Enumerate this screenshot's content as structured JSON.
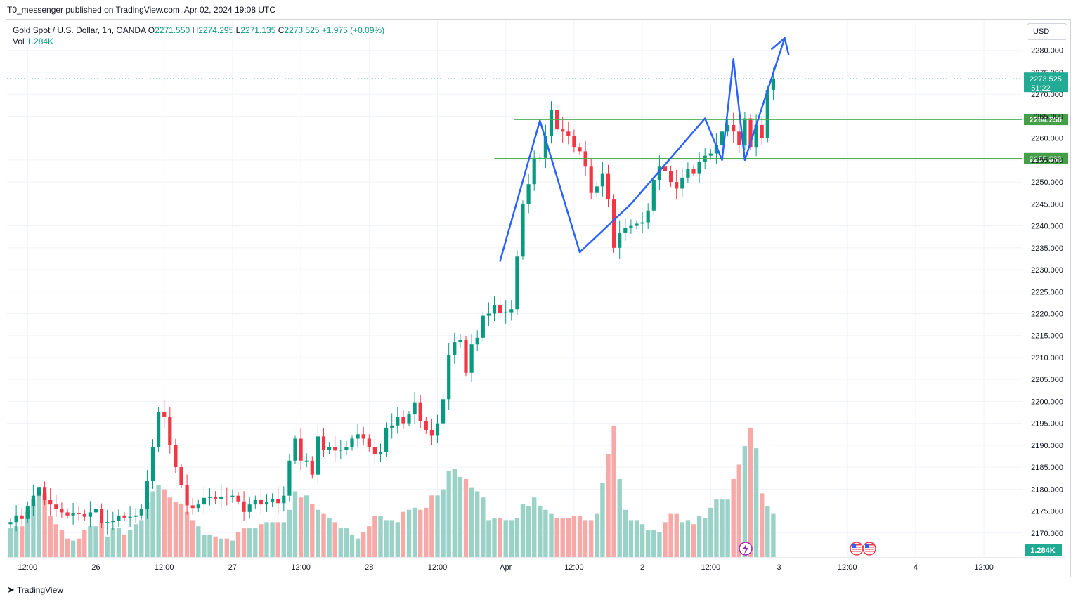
{
  "header": {
    "publisher": "T0_messenger published on TradingView.com, Apr 02, 2024 19:08 UTC"
  },
  "legend": {
    "symbol": "Gold Spot / U.S. Dollar, 1h, OANDA",
    "o_label": "O",
    "o_value": "2271.550",
    "h_label": "H",
    "h_value": "2274.295",
    "l_label": "L",
    "l_value": "2271.135",
    "c_label": "C",
    "c_value": "2273.525",
    "change": "+1.975 (+0.09%)",
    "vol_label": "Vol",
    "vol_value": "1.284K"
  },
  "currency_button": "USD",
  "footer": {
    "brand": "TradingView"
  },
  "chart_data": {
    "type": "candlestick",
    "title": "Gold Spot / U.S. Dollar, 1h, OANDA",
    "y_axis": {
      "range": [
        2165,
        2283
      ],
      "ticks": [
        "2280.000",
        "2275.000",
        "2270.000",
        "2265.000",
        "2260.000",
        "2255.000",
        "2250.000",
        "2245.000",
        "2240.000",
        "2235.000",
        "2230.000",
        "2225.000",
        "2220.000",
        "2215.000",
        "2210.000",
        "2205.000",
        "2200.000",
        "2195.000",
        "2190.000",
        "2185.000",
        "2180.000",
        "2175.000",
        "2170.000"
      ]
    },
    "x_axis": {
      "labels": [
        {
          "bar": 3,
          "text": "12:00"
        },
        {
          "bar": 15,
          "text": "26"
        },
        {
          "bar": 27,
          "text": "12:00"
        },
        {
          "bar": 39,
          "text": "27"
        },
        {
          "bar": 51,
          "text": "12:00"
        },
        {
          "bar": 63,
          "text": "28"
        },
        {
          "bar": 75,
          "text": "12:00"
        },
        {
          "bar": 87,
          "text": "Apr"
        },
        {
          "bar": 99,
          "text": "12:00"
        },
        {
          "bar": 111,
          "text": "2"
        },
        {
          "bar": 123,
          "text": "12:00"
        },
        {
          "bar": 135,
          "text": "3"
        },
        {
          "bar": 147,
          "text": "12:00"
        },
        {
          "bar": 159,
          "text": "4"
        },
        {
          "bar": 171,
          "text": "12:00"
        }
      ]
    },
    "closes": [
      2172.5,
      2174.0,
      2173.2,
      2176.2,
      2178.5,
      2180.5,
      2177.5,
      2176.5,
      2175.5,
      2174.7,
      2174.0,
      2174.5,
      2174.3,
      2173.7,
      2174.7,
      2175.5,
      2172.2,
      2172.5,
      2172.7,
      2174.0,
      2173.5,
      2173.7,
      2174.0,
      2175.5,
      2181.8,
      2189.5,
      2197.5,
      2196.5,
      2190.0,
      2185.0,
      2181.0,
      2176.3,
      2175.7,
      2176.5,
      2178.0,
      2178.3,
      2177.8,
      2178.3,
      2178.2,
      2178.5,
      2177.2,
      2174.8,
      2176.5,
      2177.5,
      2176.5,
      2177.0,
      2177.8,
      2176.8,
      2178.5,
      2186.5,
      2191.5,
      2186.5,
      2186.5,
      2183.3,
      2192.0,
      2189.0,
      2189.5,
      2188.8,
      2189.0,
      2189.5,
      2191.5,
      2192.5,
      2191.5,
      2189.5,
      2188.0,
      2188.5,
      2194.0,
      2194.5,
      2196.5,
      2195.0,
      2197.0,
      2199.8,
      2195.5,
      2193.5,
      2192.3,
      2195.0,
      2200.5,
      2210.5,
      2213.5,
      2214.0,
      2206.5,
      2213.0,
      2214.5,
      2219.5,
      2220.0,
      2222.0,
      2220.2,
      2220.3,
      2221.0,
      2233.0,
      2245.0,
      2249.5,
      2255.5,
      2255.5,
      2260.5,
      2266.5,
      2262.0,
      2261.5,
      2260.5,
      2258.0,
      2257.0,
      2253.5,
      2247.5,
      2249.0,
      2252.0,
      2246.0,
      2235.0,
      2238.5,
      2239.5,
      2240.0,
      2240.5,
      2240.8,
      2243.5,
      2250.5,
      2253.5,
      2252.5,
      2250.0,
      2248.5,
      2251.0,
      2253.0,
      2252.0,
      2254.5,
      2256.0,
      2256.5,
      2258.5,
      2261.5,
      2263.0,
      2261.5,
      2258.5,
      2264.5,
      2258.0,
      2263.0,
      2260.0,
      2271.0,
      2273.5
    ],
    "volumes": [
      14,
      15,
      15,
      22,
      28,
      31,
      31,
      20,
      16,
      13,
      9,
      8,
      9,
      13,
      15,
      15,
      17,
      10,
      14,
      14,
      11,
      13,
      16,
      18,
      27,
      32,
      35,
      33,
      29,
      27,
      26,
      22,
      18,
      15,
      11,
      11,
      10,
      9,
      9,
      8,
      12,
      14,
      14,
      14,
      16,
      17,
      17,
      17,
      17,
      23,
      32,
      29,
      30,
      26,
      23,
      21,
      19,
      17,
      14,
      14,
      11,
      9,
      12,
      15,
      20,
      20,
      18,
      18,
      17,
      22,
      23,
      24,
      23,
      24,
      30,
      30,
      33,
      42,
      43,
      39,
      38,
      34,
      32,
      29,
      18,
      19,
      19,
      18,
      18,
      19,
      26,
      25,
      29,
      25,
      23,
      21,
      19,
      19,
      19,
      20,
      20,
      18,
      18,
      21,
      36,
      50,
      64,
      38,
      23,
      18,
      18,
      16,
      13,
      13,
      12,
      17,
      21,
      21,
      17,
      18,
      16,
      20,
      19,
      24,
      28,
      28,
      28,
      38,
      45,
      54,
      63,
      53,
      31,
      25,
      21
    ],
    "volume_colors": "red for down candles, teal for up candles",
    "horizontal_levels": [
      2264.25,
      2255.332
    ],
    "pattern_polyline": [
      [
        86,
        2232
      ],
      [
        93,
        2264
      ],
      [
        100,
        2234
      ],
      [
        109,
        2245
      ],
      [
        122,
        2264.5
      ],
      [
        125,
        2255
      ],
      [
        127,
        2278
      ],
      [
        129,
        2255
      ],
      [
        136,
        2282.8
      ]
    ],
    "current_price": "2273.525",
    "countdown": "51:22",
    "volume_label": "1.284K",
    "colors": {
      "up": "#089981",
      "down": "#f23645",
      "volume_up": "#9ad2c8",
      "volume_down": "#f7a9a7",
      "pattern": "#2962ff",
      "levels": "#4caf50",
      "price_label_green": "#43a047",
      "badge_dark": "#22ab94"
    }
  }
}
